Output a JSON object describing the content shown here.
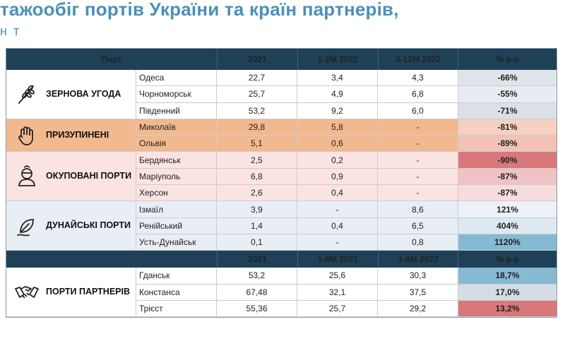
{
  "title": "тажообіг портів України та країн партнерів,",
  "subtitle": "н т",
  "header1": [
    "Порт",
    "2021",
    "1-2M 2022",
    "3-12M 2022",
    "% р-р"
  ],
  "header2": [
    "2021",
    "1-6M 2021",
    "1-6M 2022",
    "% р-р"
  ],
  "groups": [
    {
      "label": "ЗЕРНОВА УГОДА",
      "icon": "wheat-icon",
      "color": "#ffffff",
      "rows": [
        {
          "port": "Одеса",
          "v2021": "22,7",
          "v1": "3,4",
          "v2": "4,3",
          "pct": "-66%",
          "pct_bg": "#dfe4ea"
        },
        {
          "port": "Чорноморськ",
          "v2021": "25,7",
          "v1": "4,9",
          "v2": "6,8",
          "pct": "-55%",
          "pct_bg": "#e8ecf0"
        },
        {
          "port": "Південний",
          "v2021": "53,2",
          "v1": "9,2",
          "v2": "6,0",
          "pct": "-71%",
          "pct_bg": "#dbe0e6"
        }
      ]
    },
    {
      "label": "ПРИЗУПИНЕНІ",
      "icon": "hand-stop-icon",
      "color": "#f2b98f",
      "rows": [
        {
          "port": "Миколаїв",
          "v2021": "29,8",
          "v1": "5,8",
          "v2": "-",
          "pct": "-81%",
          "pct_bg": "#f6d0c0"
        },
        {
          "port": "Ольвія",
          "v2021": "5,1",
          "v1": "0,6",
          "v2": "-",
          "pct": "-89%",
          "pct_bg": "#f2c2b4"
        }
      ]
    },
    {
      "label": "ОКУПОВАНІ ПОРТИ",
      "icon": "occupied-person-icon",
      "color": "#fbe3e1",
      "rows": [
        {
          "port": "Бердянськ",
          "v2021": "2,5",
          "v1": "0,2",
          "v2": "-",
          "pct": "-90%",
          "pct_bg": "#d9787a"
        },
        {
          "port": "Маріуполь",
          "v2021": "6,8",
          "v1": "0,9",
          "v2": "-",
          "pct": "-87%",
          "pct_bg": "#efc3c4"
        },
        {
          "port": "Херсон",
          "v2021": "2,6",
          "v1": "0,4",
          "v2": "-",
          "pct": "-87%",
          "pct_bg": "#f6dcdc"
        }
      ]
    },
    {
      "label": "ДУНАЙСЬКІ ПОРТИ",
      "icon": "danube-leaf-icon",
      "color": "#e9eef4",
      "rows": [
        {
          "port": "Ізмаїл",
          "v2021": "3,9",
          "v1": "-",
          "v2": "8,6",
          "pct": "121%",
          "pct_bg": "#eef2f6"
        },
        {
          "port": "Ренійський",
          "v2021": "1,4",
          "v1": "0,4",
          "v2": "6,5",
          "pct": "404%",
          "pct_bg": "#dde8f0"
        },
        {
          "port": "Усть-Дунайськ",
          "v2021": "0,1",
          "v1": "-",
          "v2": "0,8",
          "pct": "1120%",
          "pct_bg": "#86bad2"
        }
      ]
    }
  ],
  "partners": {
    "label": "ПОРТИ ПАРТНЕРІВ",
    "icon": "handshake-icon",
    "rows": [
      {
        "port": "Гданськ",
        "v2021": "53,2",
        "v1": "25,6",
        "v2": "30,3",
        "pct": "18,7%",
        "pct_bg": "#86bad2"
      },
      {
        "port": "Констанса",
        "v2021": "67,48",
        "v1": "32,1",
        "v2": "37,5",
        "pct": "17,0%",
        "pct_bg": "#d4dde4"
      },
      {
        "port": "Трієст",
        "v2021": "55,36",
        "v1": "25,7",
        "v2": "29,2",
        "pct": "13,2%",
        "pct_bg": "#d9787a"
      }
    ]
  }
}
